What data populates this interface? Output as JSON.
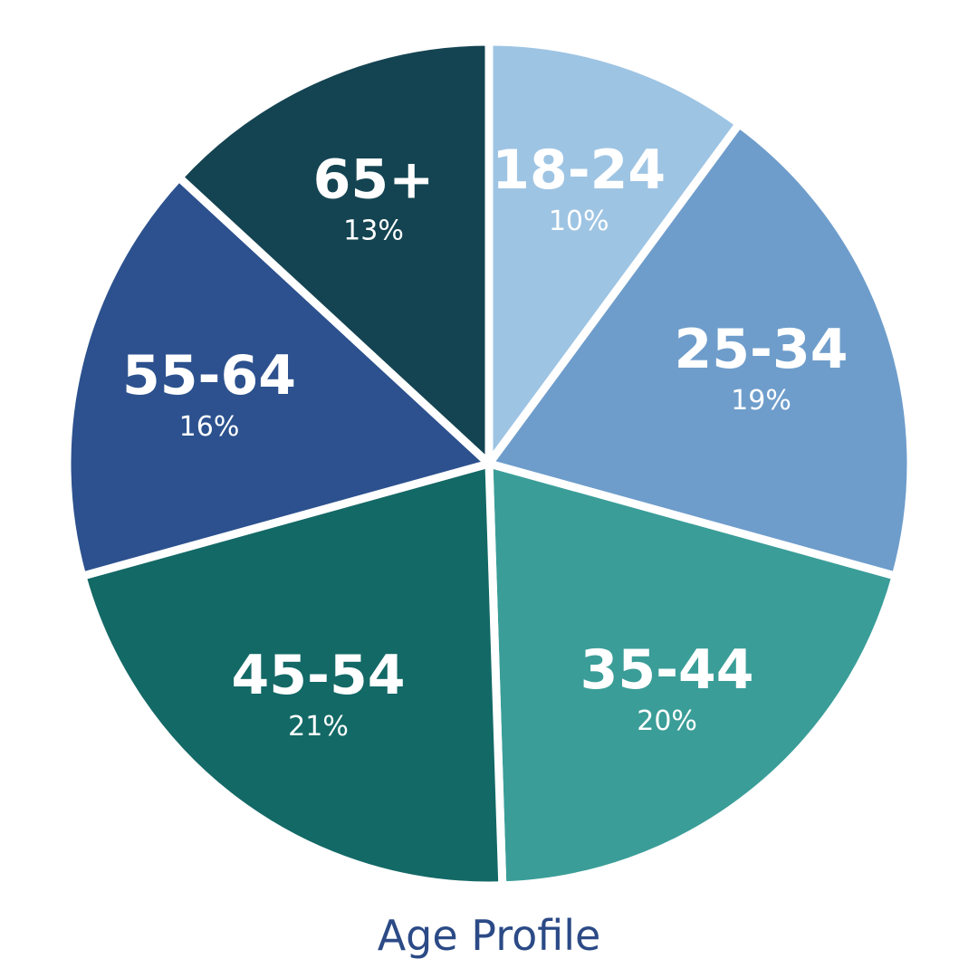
{
  "chart_data": {
    "type": "pie",
    "title": "Age Profile",
    "categories": [
      "18-24",
      "25-34",
      "35-44",
      "45-54",
      "55-64",
      "65+"
    ],
    "values": [
      10,
      19,
      20,
      21,
      16,
      13
    ],
    "value_labels": [
      "10%",
      "19%",
      "20%",
      "21%",
      "16%",
      "13%"
    ],
    "colors": [
      "#9ec4e3",
      "#6e9dcb",
      "#3a9d98",
      "#136966",
      "#2c518e",
      "#144452"
    ],
    "label_color": "#ffffff",
    "title_color": "#2b4a86",
    "start": "12 o'clock",
    "direction": "clockwise",
    "legend": "none"
  }
}
